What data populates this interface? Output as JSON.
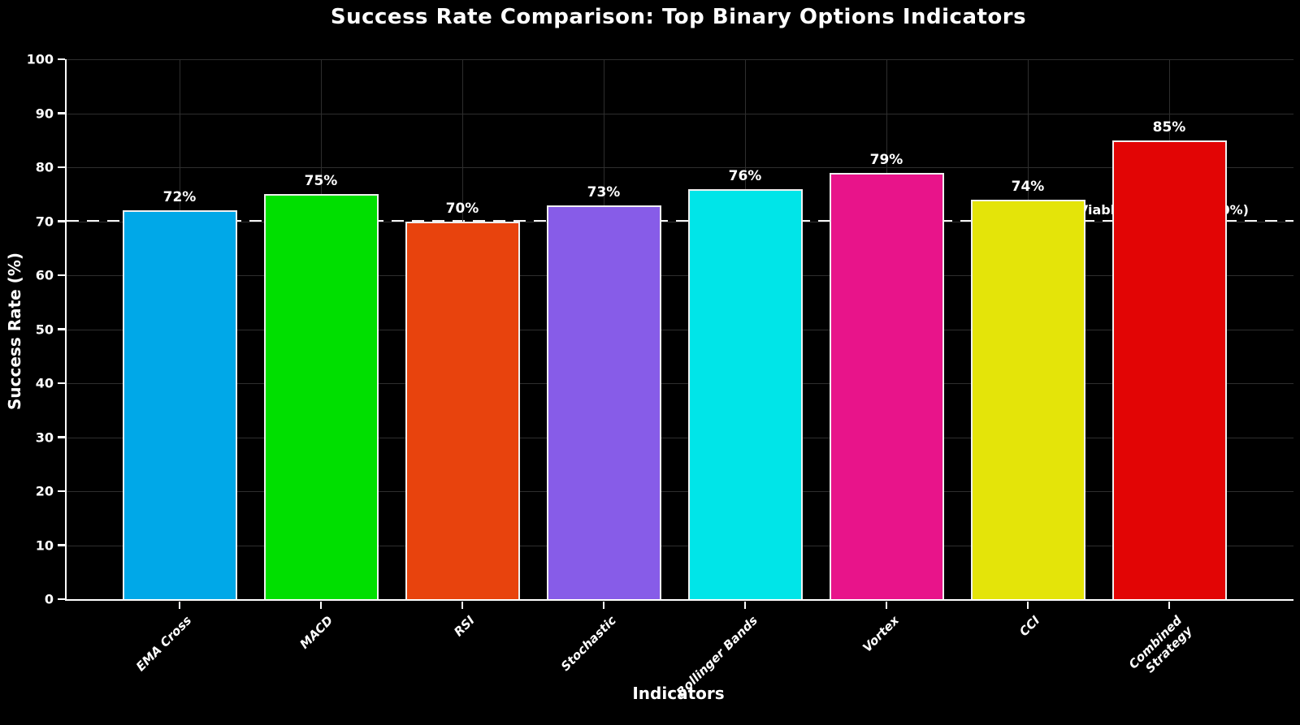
{
  "page": {
    "background": "#000000",
    "text_color": "#FFFFFF"
  },
  "chart_data": {
    "type": "bar",
    "title": "Success Rate Comparison: Top Binary Options Indicators",
    "xlabel": "Indicators",
    "ylabel": "Success Rate (%)",
    "categories": [
      "EMA Cross",
      "MACD",
      "RSI",
      "Stochastic",
      "Bollinger Bands",
      "Vortex",
      "CCI",
      "Combined\nStrategy"
    ],
    "values": [
      72,
      75,
      70,
      73,
      76,
      79,
      74,
      85
    ],
    "value_labels": [
      "72%",
      "75%",
      "70%",
      "73%",
      "76%",
      "79%",
      "74%",
      "85%"
    ],
    "bar_colors": [
      "#00A8E8",
      "#00DF00",
      "#E8430D",
      "#875CE8",
      "#00E5E8",
      "#E8148A",
      "#E4E409",
      "#E20505"
    ],
    "bar_edge_color": "#F0F0F0",
    "ylim": [
      0,
      100
    ],
    "yticks": [
      0,
      10,
      20,
      30,
      40,
      50,
      60,
      70,
      80,
      90,
      100
    ],
    "grid": {
      "visible": true,
      "color": "#2E2E2E"
    },
    "threshold": {
      "value": 70,
      "label": "Minimum Viable Threshold (70%)",
      "color": "#FFFFFF",
      "style": "dashed"
    },
    "legend": null,
    "background": "#000000"
  }
}
